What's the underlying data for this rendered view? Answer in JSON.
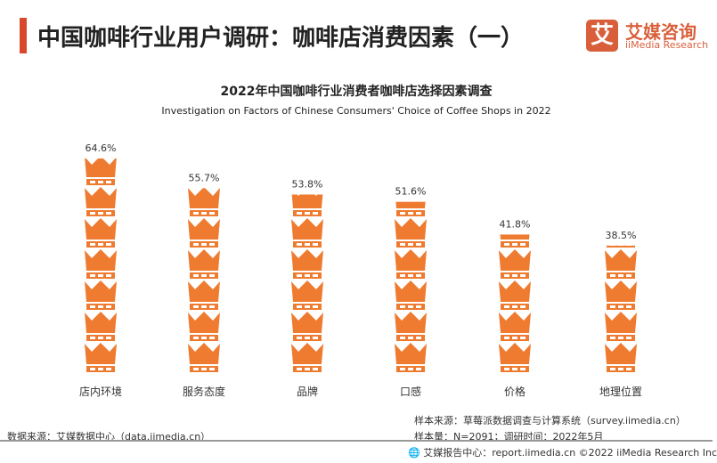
{
  "header": {
    "title": "中国咖啡行业用户调研：咖啡店消费因素（一）",
    "logo_mark": "艾",
    "logo_cn": "艾媒咨询",
    "logo_en": "iiMedia Research"
  },
  "chart_data": {
    "type": "bar",
    "title": "2022年中国咖啡行业消费者咖啡店选择因素调查",
    "subtitle": "Investigation on Factors of Chinese Consumers' Choice of Coffee Shops in 2022",
    "categories": [
      "店内环境",
      "服务态度",
      "品牌",
      "口感",
      "价格",
      "地理位置"
    ],
    "values": [
      64.6,
      55.7,
      53.8,
      51.6,
      41.8,
      38.5
    ],
    "labels": [
      "64.6%",
      "55.7%",
      "53.8%",
      "51.6%",
      "41.8%",
      "38.5%"
    ],
    "unit": "%",
    "ylim": [
      0,
      70
    ],
    "mark": "crown-icon-stack",
    "color": "#EE7B30",
    "grid": false
  },
  "footer": {
    "source": "数据来源：艾媒数据中心（data.iimedia.cn）",
    "sample_source": "样本来源：草莓派数据调查与计算系统（survey.iimedia.cn）",
    "sample_size": "样本量：N=2091；调研时间：2022年5月",
    "report": "艾媒报告中心：report.iimedia.cn  ©2022  iiMedia Research  Inc"
  }
}
